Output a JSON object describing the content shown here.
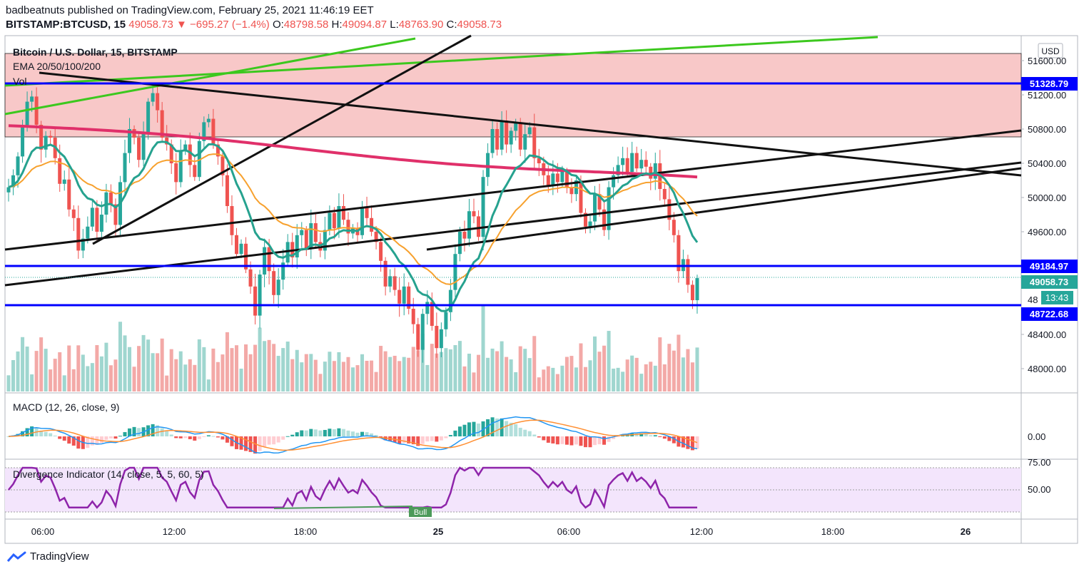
{
  "header": {
    "publisher_line": "badbeatnuts published on TradingView.com, February 25, 2021 11:46:19 EET",
    "symbol": "BITSTAMP:BTCUSD, 15",
    "last": "49058.73",
    "change_arrow": "▼",
    "change": "−695.27 (−1.4%)",
    "o_label": "O:",
    "o_value": "48798.58",
    "h_label": "H:",
    "h_value": "49094.87",
    "l_label": "L:",
    "l_value": "48763.90",
    "c_label": "C:",
    "c_value": "49058.73"
  },
  "legend": {
    "title": "Bitcoin / U.S. Dollar, 15, BITSTAMP",
    "ema": "EMA 20/50/100/200",
    "vol": "Vol",
    "macd": "MACD (12, 26, close, 9)",
    "divergence": "Divergence Indicator (14, close, 5, 5, 60, 5)",
    "bull": "Bull"
  },
  "axis": {
    "currency": "USD",
    "price_ticks": [
      "51600.00",
      "51200.00",
      "50800.00",
      "50400.00",
      "50000.00",
      "49600.00",
      "48400.00",
      "48000.00"
    ],
    "partial_tick": "48",
    "macd_tick": "0.00",
    "div_ticks": [
      "75.00",
      "50.00"
    ],
    "time_ticks": [
      "06:00",
      "12:00",
      "18:00",
      "25",
      "06:00",
      "12:00",
      "18:00",
      "26"
    ]
  },
  "price_labels": {
    "upper": "51328.79",
    "mid": "49184.97",
    "last": "49058.73",
    "countdown": "13:43",
    "lower": "48722.68"
  },
  "colors": {
    "bull": "#26a69a",
    "bear": "#ef5350",
    "level": "#0000ff",
    "zone": "#f8c8c8",
    "ema20": "#26a28f",
    "ema50": "#f7a12e",
    "ema200": "#e0306a",
    "trend_green": "#3cc81e",
    "macd": "#2196f3",
    "signal": "#ff8f32",
    "div": "#8e24aa"
  },
  "footer": {
    "brand": "TradingView"
  },
  "chart_data": {
    "type": "candlestick",
    "title": "Bitcoin / U.S. Dollar, 15, BITSTAMP",
    "ylim": [
      47700,
      51950
    ],
    "horizontal_levels": [
      51328.79,
      49184.97,
      48722.68
    ],
    "resistance_zone": [
      50700,
      51650
    ],
    "last_price": 49058.73,
    "closes": [
      50120,
      50260,
      50480,
      50820,
      51120,
      51180,
      50850,
      50560,
      50720,
      50700,
      50460,
      50160,
      50210,
      49860,
      49760,
      49380,
      49520,
      49660,
      49880,
      49600,
      49800,
      50060,
      49920,
      49680,
      50180,
      50520,
      50800,
      50700,
      50440,
      50760,
      51120,
      51220,
      51020,
      50700,
      50620,
      50400,
      50180,
      50540,
      50620,
      50380,
      50240,
      50660,
      50880,
      50920,
      50620,
      50480,
      50260,
      49900,
      49560,
      49340,
      49460,
      49160,
      48960,
      48620,
      49100,
      49420,
      49140,
      48860,
      49040,
      49240,
      49480,
      49300,
      49560,
      49620,
      49400,
      49700,
      49480,
      49380,
      49620,
      49820,
      49640,
      49900,
      49740,
      49580,
      49640,
      49560,
      49880,
      49760,
      49600,
      49480,
      49260,
      48960,
      49080,
      48920,
      48760,
      48960,
      48700,
      48520,
      48220,
      48640,
      48780,
      48500,
      48240,
      48460,
      48660,
      48920,
      49340,
      49600,
      49520,
      49840,
      49780,
      49540,
      50240,
      50520,
      50800,
      50560,
      50900,
      50620,
      50780,
      50880,
      50560,
      50740,
      50820,
      50460,
      50400,
      50260,
      50140,
      50280,
      50180,
      50300,
      50120,
      50040,
      50200,
      49820,
      49660,
      49720,
      50040,
      49860,
      49620,
      50120,
      50260,
      50380,
      50460,
      50300,
      50520,
      50340,
      50440,
      50360,
      50220,
      50400,
      50100,
      49980,
      49740,
      49560,
      49140,
      49280,
      48980,
      48800,
      49058
    ]
  }
}
